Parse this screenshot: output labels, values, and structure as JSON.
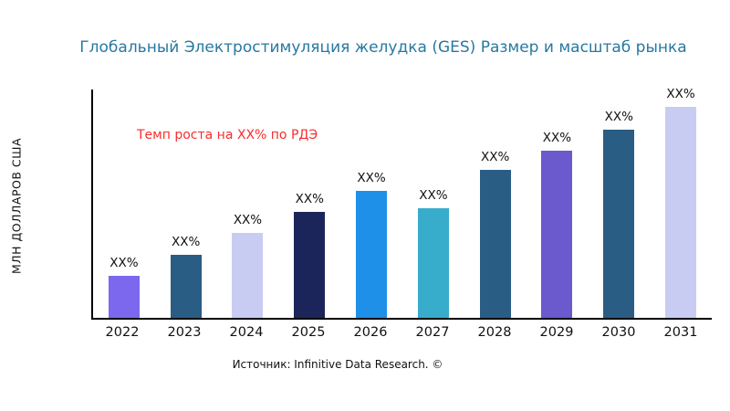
{
  "title": "Глобальный Электростимуляция желудка (GES) Размер и масштаб рынка",
  "ylabel": "МЛН ДОЛЛАРОВ США",
  "growth_note": "Темп роста на XX% по РДЭ",
  "source": "Источник: Infinitive Data Research. ©",
  "colors": {
    "title": "#2878A0",
    "annotation": "#F62D2D",
    "axis": "#000000"
  },
  "chart_data": {
    "type": "bar",
    "title": "Глобальный Электростимуляция желудка (GES) Размер и масштаб рынка",
    "xlabel": "",
    "ylabel": "МЛН ДОЛЛАРОВ США",
    "categories": [
      "2022",
      "2023",
      "2024",
      "2025",
      "2026",
      "2027",
      "2028",
      "2029",
      "2030",
      "2031"
    ],
    "values": [
      20,
      30,
      40,
      50,
      60,
      52,
      70,
      79,
      89,
      100
    ],
    "bar_labels": [
      "XX%",
      "XX%",
      "XX%",
      "XX%",
      "XX%",
      "XX%",
      "XX%",
      "XX%",
      "XX%",
      "XX%"
    ],
    "bar_colors": [
      "#7B68EE",
      "#295D84",
      "#C9CCF2",
      "#1B2559",
      "#1E90E8",
      "#38ACCB",
      "#295D84",
      "#6A5ACD",
      "#295D84",
      "#C9CCF2"
    ],
    "ylim": [
      0,
      108
    ],
    "grid": false,
    "legend": "none",
    "annotation": "Темп роста на XX% по РДЭ"
  }
}
